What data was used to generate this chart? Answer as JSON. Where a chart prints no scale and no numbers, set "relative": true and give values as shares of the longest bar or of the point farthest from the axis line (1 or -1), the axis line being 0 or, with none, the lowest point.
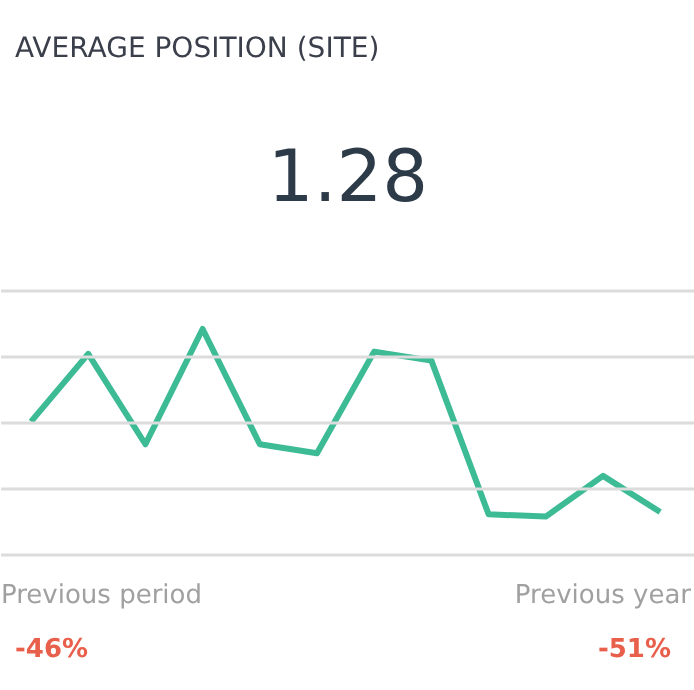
{
  "chart_data": {
    "type": "line",
    "title": "AVERAGE POSITION (SITE)",
    "subtitle": "1.28",
    "relative": true,
    "grid": "y",
    "marker": "none",
    "line_style": "solid",
    "categories": [
      null,
      null,
      null,
      null,
      null,
      null,
      null,
      null,
      null,
      null,
      null,
      null
    ],
    "series": [
      {
        "color": "#3dbb95",
        "values": [
          0.59,
          0.89,
          0.49,
          1,
          0.49,
          0.45,
          0.9,
          0.86,
          0.18,
          0.17,
          0.35,
          0.19
        ]
      }
    ],
    "annotations": [
      "Previous period",
      "-46%",
      "Previous year",
      "-51%"
    ]
  }
}
